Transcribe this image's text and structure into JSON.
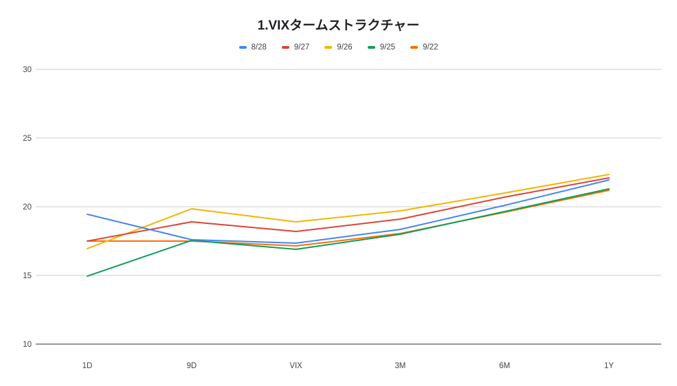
{
  "chart_data": {
    "type": "line",
    "title": "1.VIXタームストラクチャー",
    "categories": [
      "1D",
      "9D",
      "VIX",
      "3M",
      "6M",
      "1Y"
    ],
    "ylim": [
      10,
      30
    ],
    "yticks": [
      10,
      15,
      20,
      25,
      30
    ],
    "grid": true,
    "legend_position": "top",
    "series": [
      {
        "name": "8/28",
        "color": "#4285f4",
        "values": [
          19.45,
          17.6,
          17.35,
          18.35,
          20.1,
          21.95
        ]
      },
      {
        "name": "9/27",
        "color": "#db4437",
        "values": [
          17.5,
          18.9,
          18.2,
          19.1,
          20.7,
          22.1
        ]
      },
      {
        "name": "9/26",
        "color": "#f4b400",
        "values": [
          16.95,
          19.85,
          18.9,
          19.7,
          21.0,
          22.35
        ]
      },
      {
        "name": "9/25",
        "color": "#0f9d58",
        "values": [
          14.95,
          17.55,
          16.9,
          18.0,
          19.65,
          21.3
        ]
      },
      {
        "name": "9/22",
        "color": "#ff6d01",
        "values": [
          17.5,
          17.5,
          17.15,
          18.05,
          19.6,
          21.2
        ]
      }
    ]
  }
}
